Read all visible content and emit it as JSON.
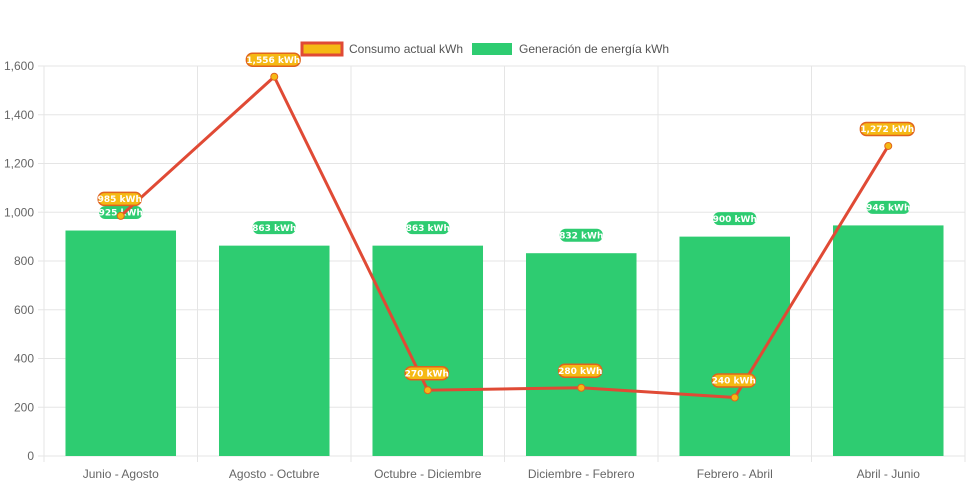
{
  "chart_data": {
    "type": "bar",
    "categories": [
      "Junio - Agosto",
      "Agosto - Octubre",
      "Octubre - Diciembre",
      "Diciembre - Febrero",
      "Febrero - Abril",
      "Abril - Junio"
    ],
    "series": [
      {
        "name": "Consumo actual kWh",
        "type": "line",
        "values": [
          985,
          1556,
          270,
          280,
          240,
          1272
        ],
        "labels": [
          "985 kWh",
          "1,556 kWh",
          "270 kWh",
          "280 kWh",
          "240 kWh",
          "1,272 kWh"
        ],
        "color": "#e04a35",
        "label_fill": "#f5b914",
        "label_border": "#e0641e"
      },
      {
        "name": "Generación de energía kWh",
        "type": "bar",
        "values": [
          925,
          863,
          863,
          832,
          900,
          946
        ],
        "labels": [
          "925 kWh",
          "863 kWh",
          "863 kWh",
          "832 kWh",
          "900 kWh",
          "946 kWh"
        ],
        "color": "#2ecc71"
      }
    ],
    "yticks": [
      "0",
      "200",
      "400",
      "600",
      "800",
      "1,000",
      "1,200",
      "1,400",
      "1,600"
    ],
    "ylim": [
      0,
      1600
    ],
    "grid": true,
    "legend": "top-center",
    "grid_color": "#e5e5e5"
  }
}
